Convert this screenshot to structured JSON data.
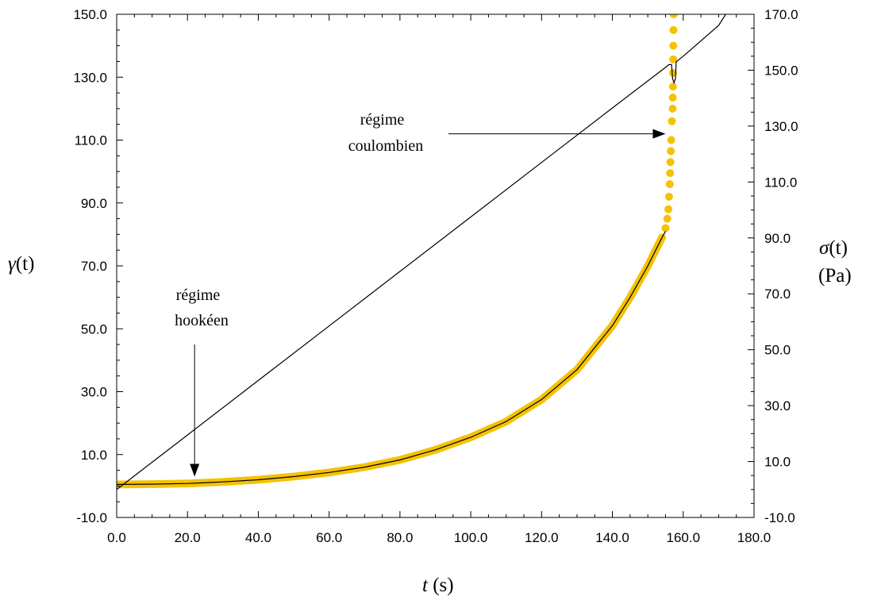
{
  "chart_data": {
    "type": "scatter",
    "title": "",
    "x_axis": {
      "label_var": "t",
      "label_unit": " (s)",
      "range": [
        0,
        180
      ],
      "ticks": [
        0,
        20,
        40,
        60,
        80,
        100,
        120,
        140,
        160,
        180
      ],
      "tick_labels": [
        "0.0",
        "20.0",
        "40.0",
        "60.0",
        "80.0",
        "100.0",
        "120.0",
        "140.0",
        "160.0",
        "180.0"
      ]
    },
    "y_left": {
      "label_var": "γ",
      "label_arg": "(t)",
      "range": [
        -10,
        150
      ],
      "ticks": [
        -10,
        10,
        30,
        50,
        70,
        90,
        110,
        130,
        150
      ],
      "tick_labels": [
        "-10.0",
        "10.0",
        "30.0",
        "50.0",
        "70.0",
        "90.0",
        "110.0",
        "130.0",
        "150.0"
      ]
    },
    "y_right": {
      "label_var": "σ",
      "label_arg": "(t)",
      "label_unit": "(Pa)",
      "range": [
        -10,
        170
      ],
      "ticks": [
        -10,
        10,
        30,
        50,
        70,
        90,
        110,
        130,
        150,
        170
      ],
      "tick_labels": [
        "-10.0",
        "10.0",
        "30.0",
        "50.0",
        "70.0",
        "90.0",
        "110.0",
        "130.0",
        "150.0",
        "170.0"
      ]
    },
    "series": [
      {
        "axis": "left",
        "style": "markers",
        "color": "#f5c200",
        "points": [
          [
            0,
            0.5
          ],
          [
            10,
            0.6
          ],
          [
            20,
            0.8
          ],
          [
            30,
            1.3
          ],
          [
            40,
            2
          ],
          [
            50,
            3
          ],
          [
            60,
            4.3
          ],
          [
            70,
            6
          ],
          [
            80,
            8.3
          ],
          [
            90,
            11.5
          ],
          [
            100,
            15.5
          ],
          [
            110,
            20.5
          ],
          [
            120,
            27.5
          ],
          [
            130,
            37
          ],
          [
            140,
            51
          ],
          [
            145,
            60
          ],
          [
            150,
            70
          ],
          [
            154,
            79
          ],
          [
            155,
            82
          ],
          [
            155.5,
            85
          ],
          [
            155.8,
            88
          ],
          [
            156,
            92
          ],
          [
            156.2,
            96
          ],
          [
            156.4,
            103
          ],
          [
            156.6,
            110
          ],
          [
            156.8,
            116
          ],
          [
            157,
            120
          ],
          [
            157.1,
            127
          ],
          [
            157.2,
            140
          ],
          [
            157.3,
            150
          ]
        ]
      },
      {
        "axis": "left",
        "style": "line",
        "color": "#000000",
        "points": [
          [
            0,
            0.5
          ],
          [
            10,
            0.6
          ],
          [
            20,
            0.8
          ],
          [
            30,
            1.3
          ],
          [
            40,
            2
          ],
          [
            50,
            3
          ],
          [
            60,
            4.3
          ],
          [
            70,
            6
          ],
          [
            80,
            8.3
          ],
          [
            90,
            11.5
          ],
          [
            100,
            15.5
          ],
          [
            110,
            20.5
          ],
          [
            120,
            27.5
          ],
          [
            130,
            37
          ],
          [
            140,
            51
          ],
          [
            145,
            60
          ],
          [
            150,
            70
          ],
          [
            154,
            79
          ],
          [
            155,
            81
          ]
        ]
      },
      {
        "axis": "right",
        "style": "line",
        "color": "#000000",
        "points": [
          [
            0,
            0
          ],
          [
            20,
            19.5
          ],
          [
            40,
            39
          ],
          [
            60,
            58.5
          ],
          [
            80,
            78
          ],
          [
            100,
            97.5
          ],
          [
            120,
            117
          ],
          [
            140,
            136.5
          ],
          [
            155,
            151
          ],
          [
            156,
            152
          ],
          [
            156.7,
            152
          ],
          [
            157,
            147
          ],
          [
            157.4,
            145.5
          ],
          [
            157.8,
            147
          ],
          [
            158,
            153
          ],
          [
            160,
            155
          ],
          [
            170,
            166
          ],
          [
            172,
            170
          ]
        ]
      }
    ],
    "annotations": [
      {
        "text_lines": [
          "régime",
          "hookéen"
        ],
        "x": 22,
        "y": 20,
        "tip_x": 22,
        "tip_y": 3
      },
      {
        "text_lines": [
          "régime",
          "coulombien"
        ],
        "x": 155,
        "y": 112,
        "tip_x": 155,
        "tip_y": 112
      }
    ]
  }
}
